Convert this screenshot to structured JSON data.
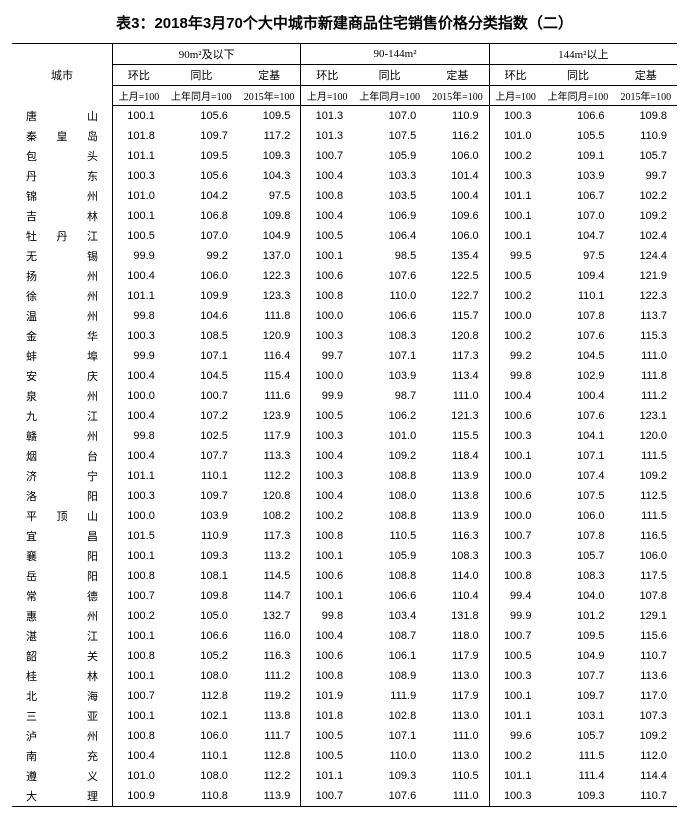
{
  "title": "表3：2018年3月70个大中城市新建商品住宅销售价格分类指数（二）",
  "header": {
    "city": "城市",
    "groups": [
      "90m²及以下",
      "90-144m²",
      "144m²以上"
    ],
    "subs": [
      "环比",
      "同比",
      "定基"
    ],
    "basis": [
      "上月=100",
      "上年同月=100",
      "2015年=100"
    ]
  },
  "rows": [
    {
      "city": "唐　　山",
      "v": [
        100.1,
        105.6,
        109.5,
        101.3,
        107.0,
        110.9,
        100.3,
        106.6,
        109.8
      ]
    },
    {
      "city": "秦 皇 岛",
      "v": [
        101.8,
        109.7,
        117.2,
        101.3,
        107.5,
        116.2,
        101.0,
        105.5,
        110.9
      ]
    },
    {
      "city": "包　　头",
      "v": [
        101.1,
        109.5,
        109.3,
        100.7,
        105.9,
        106.0,
        100.2,
        109.1,
        105.7
      ]
    },
    {
      "city": "丹　　东",
      "v": [
        100.3,
        105.6,
        104.3,
        100.4,
        103.3,
        101.4,
        100.3,
        103.9,
        99.7
      ]
    },
    {
      "city": "锦　　州",
      "v": [
        101.0,
        104.2,
        97.5,
        100.8,
        103.5,
        100.4,
        101.1,
        106.7,
        102.2
      ]
    },
    {
      "city": "吉　　林",
      "v": [
        100.1,
        106.8,
        109.8,
        100.4,
        106.9,
        109.6,
        100.1,
        107.0,
        109.2
      ]
    },
    {
      "city": "牡 丹 江",
      "v": [
        100.5,
        107.0,
        104.9,
        100.5,
        106.4,
        106.0,
        100.1,
        104.7,
        102.4
      ]
    },
    {
      "city": "无　　锡",
      "v": [
        99.9,
        99.2,
        137.0,
        100.1,
        98.5,
        135.4,
        99.5,
        97.5,
        124.4
      ]
    },
    {
      "city": "扬　　州",
      "v": [
        100.4,
        106.0,
        122.3,
        100.6,
        107.6,
        122.5,
        100.5,
        109.4,
        121.9
      ]
    },
    {
      "city": "徐　　州",
      "v": [
        101.1,
        109.9,
        123.3,
        100.8,
        110.0,
        122.7,
        100.2,
        110.1,
        122.3
      ]
    },
    {
      "city": "温　　州",
      "v": [
        99.8,
        104.6,
        111.8,
        100.0,
        106.6,
        115.7,
        100.0,
        107.8,
        113.7
      ]
    },
    {
      "city": "金　　华",
      "v": [
        100.3,
        108.5,
        120.9,
        100.3,
        108.3,
        120.8,
        100.2,
        107.6,
        115.3
      ]
    },
    {
      "city": "蚌　　埠",
      "v": [
        99.9,
        107.1,
        116.4,
        99.7,
        107.1,
        117.3,
        99.2,
        104.5,
        111.0
      ]
    },
    {
      "city": "安　　庆",
      "v": [
        100.4,
        104.5,
        115.4,
        100.0,
        103.9,
        113.4,
        99.8,
        102.9,
        111.8
      ]
    },
    {
      "city": "泉　　州",
      "v": [
        100.0,
        100.7,
        111.6,
        99.9,
        98.7,
        111.0,
        100.4,
        100.4,
        111.2
      ]
    },
    {
      "city": "九　　江",
      "v": [
        100.4,
        107.2,
        123.9,
        100.5,
        106.2,
        121.3,
        100.6,
        107.6,
        123.1
      ]
    },
    {
      "city": "赣　　州",
      "v": [
        99.8,
        102.5,
        117.9,
        100.3,
        101.0,
        115.5,
        100.3,
        104.1,
        120.0
      ]
    },
    {
      "city": "烟　　台",
      "v": [
        100.4,
        107.7,
        113.3,
        100.4,
        109.2,
        118.4,
        100.1,
        107.1,
        111.5
      ]
    },
    {
      "city": "济　　宁",
      "v": [
        101.1,
        110.1,
        112.2,
        100.3,
        108.8,
        113.9,
        100.0,
        107.4,
        109.2
      ]
    },
    {
      "city": "洛　　阳",
      "v": [
        100.3,
        109.7,
        120.8,
        100.4,
        108.0,
        113.8,
        100.6,
        107.5,
        112.5
      ]
    },
    {
      "city": "平 顶 山",
      "v": [
        100.0,
        103.9,
        108.2,
        100.2,
        108.8,
        113.9,
        100.0,
        106.0,
        111.5
      ]
    },
    {
      "city": "宜　　昌",
      "v": [
        101.5,
        110.9,
        117.3,
        100.8,
        110.5,
        116.3,
        100.7,
        107.8,
        116.5
      ]
    },
    {
      "city": "襄　　阳",
      "v": [
        100.1,
        109.3,
        113.2,
        100.1,
        105.9,
        108.3,
        100.3,
        105.7,
        106.0
      ]
    },
    {
      "city": "岳　　阳",
      "v": [
        100.8,
        108.1,
        114.5,
        100.6,
        108.8,
        114.0,
        100.8,
        108.3,
        117.5
      ]
    },
    {
      "city": "常　　德",
      "v": [
        100.7,
        109.8,
        114.7,
        100.1,
        106.6,
        110.4,
        99.4,
        104.0,
        107.8
      ]
    },
    {
      "city": "惠　　州",
      "v": [
        100.2,
        105.0,
        132.7,
        99.8,
        103.4,
        131.8,
        99.9,
        101.2,
        129.1
      ]
    },
    {
      "city": "湛　　江",
      "v": [
        100.1,
        106.6,
        116.0,
        100.4,
        108.7,
        118.0,
        100.7,
        109.5,
        115.6
      ]
    },
    {
      "city": "韶　　关",
      "v": [
        100.8,
        105.2,
        116.3,
        100.6,
        106.1,
        117.9,
        100.5,
        104.9,
        110.7
      ]
    },
    {
      "city": "桂　　林",
      "v": [
        100.1,
        108.0,
        111.2,
        100.8,
        108.9,
        113.0,
        100.3,
        107.7,
        113.6
      ]
    },
    {
      "city": "北　　海",
      "v": [
        100.7,
        112.8,
        119.2,
        101.9,
        111.9,
        117.9,
        100.1,
        109.7,
        117.0
      ]
    },
    {
      "city": "三　　亚",
      "v": [
        100.1,
        102.1,
        113.8,
        101.8,
        102.8,
        113.0,
        101.1,
        103.1,
        107.3
      ]
    },
    {
      "city": "泸　　州",
      "v": [
        100.8,
        106.0,
        111.7,
        100.5,
        107.1,
        111.0,
        99.6,
        105.7,
        109.2
      ]
    },
    {
      "city": "南　　充",
      "v": [
        100.4,
        110.1,
        112.8,
        100.5,
        110.0,
        113.0,
        100.2,
        111.5,
        112.0
      ]
    },
    {
      "city": "遵　　义",
      "v": [
        101.0,
        108.0,
        112.2,
        101.1,
        109.3,
        110.5,
        101.1,
        111.4,
        114.4
      ]
    },
    {
      "city": "大　　理",
      "v": [
        100.9,
        110.8,
        113.9,
        100.7,
        107.6,
        111.0,
        100.3,
        109.3,
        110.7
      ]
    }
  ]
}
